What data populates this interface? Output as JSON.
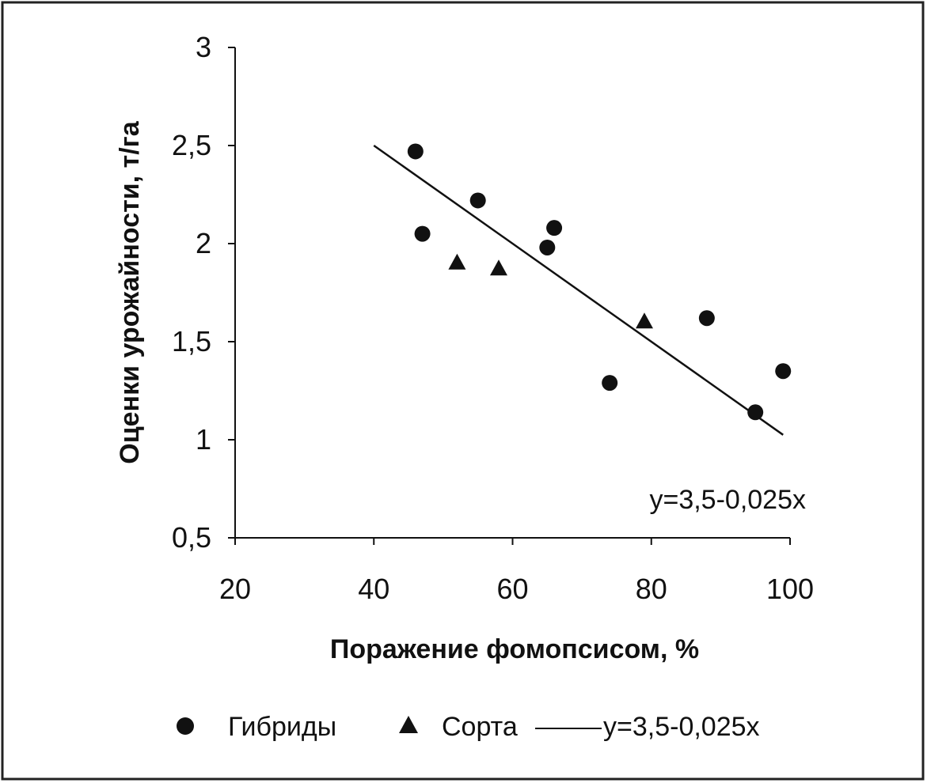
{
  "chart_data": {
    "type": "scatter",
    "xlabel": "Поражение фомопсисом, %",
    "ylabel": "Оценки урожайности, т/га",
    "xlim": [
      20,
      100
    ],
    "ylim": [
      0.5,
      3
    ],
    "xticks": [
      20,
      40,
      60,
      80,
      100
    ],
    "yticks": [
      0.5,
      1,
      1.5,
      2,
      2.5,
      3
    ],
    "xtick_labels": [
      "20",
      "40",
      "60",
      "80",
      "100"
    ],
    "ytick_labels": [
      "0,5",
      "1",
      "1,5",
      "2",
      "2,5",
      "3"
    ],
    "grid": false,
    "legend_position": "bottom",
    "series": [
      {
        "name": "Гибриды",
        "marker": "circle",
        "color": "#111111",
        "points": [
          {
            "x": 46,
            "y": 2.47
          },
          {
            "x": 47,
            "y": 2.05
          },
          {
            "x": 55,
            "y": 2.22
          },
          {
            "x": 65,
            "y": 1.98
          },
          {
            "x": 66,
            "y": 2.08
          },
          {
            "x": 74,
            "y": 1.29
          },
          {
            "x": 88,
            "y": 1.62
          },
          {
            "x": 95,
            "y": 1.14
          },
          {
            "x": 99,
            "y": 1.35
          }
        ]
      },
      {
        "name": "Сорта",
        "marker": "triangle",
        "color": "#111111",
        "points": [
          {
            "x": 52,
            "y": 1.9
          },
          {
            "x": 58,
            "y": 1.87
          },
          {
            "x": 79,
            "y": 1.6
          }
        ]
      }
    ],
    "trendline": {
      "name": "y=3,5-0,025x",
      "intercept": 3.5,
      "slope": -0.025,
      "x_range": [
        40,
        99
      ]
    },
    "annotation": "y=3,5-0,025x"
  }
}
